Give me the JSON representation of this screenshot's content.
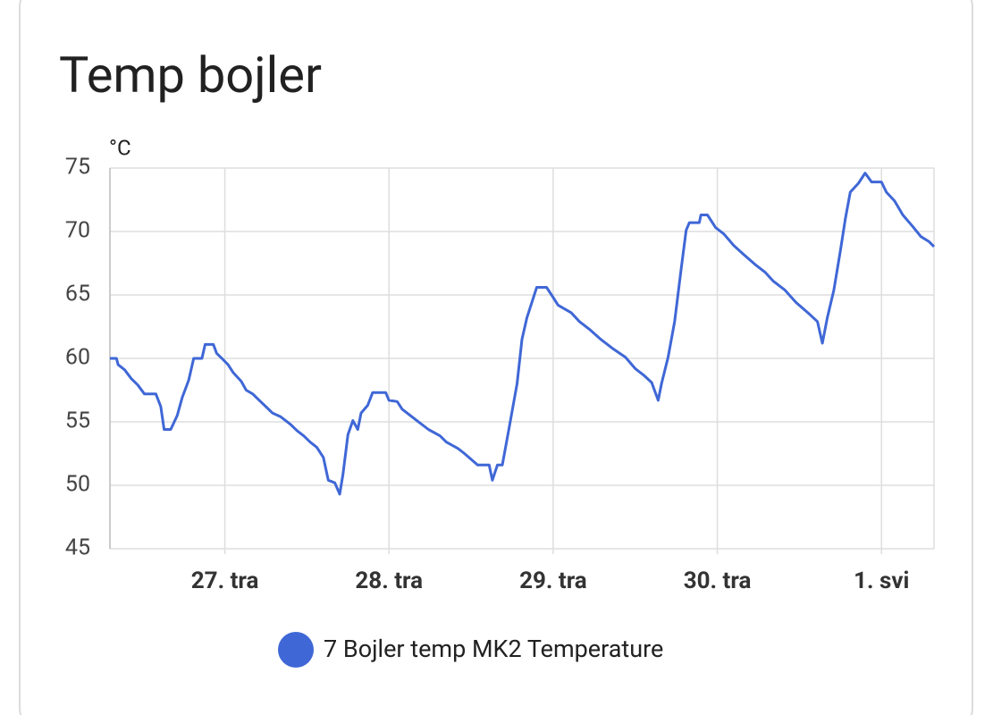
{
  "chart_data": {
    "type": "line",
    "title": "Temp bojler",
    "y_label": "°C",
    "x": [
      26.3,
      26.34,
      26.35,
      26.39,
      26.43,
      26.47,
      26.51,
      26.58,
      26.61,
      26.63,
      26.67,
      26.71,
      26.74,
      26.78,
      26.81,
      26.86,
      26.88,
      26.93,
      26.95,
      26.99,
      27.02,
      27.05,
      27.1,
      27.13,
      27.17,
      27.21,
      27.25,
      27.29,
      27.34,
      27.4,
      27.44,
      27.48,
      27.52,
      27.56,
      27.6,
      27.63,
      27.67,
      27.7,
      27.72,
      27.75,
      27.78,
      27.81,
      27.83,
      27.87,
      27.9,
      27.98,
      28.0,
      28.05,
      28.08,
      28.13,
      28.18,
      28.24,
      28.31,
      28.35,
      28.42,
      28.46,
      28.54,
      28.61,
      28.63,
      28.66,
      28.69,
      28.73,
      28.78,
      28.81,
      28.84,
      28.9,
      28.96,
      28.99,
      29.03,
      29.11,
      29.16,
      29.22,
      29.29,
      29.36,
      29.44,
      29.5,
      29.55,
      29.6,
      29.64,
      29.66,
      29.7,
      29.74,
      29.78,
      29.81,
      29.83,
      29.89,
      29.9,
      29.94,
      29.99,
      30.04,
      30.1,
      30.16,
      30.23,
      30.29,
      30.34,
      30.41,
      30.48,
      30.56,
      30.61,
      30.64,
      30.67,
      30.71,
      30.75,
      30.78,
      30.81,
      30.86,
      30.9,
      30.94,
      31.0,
      31.03,
      31.08,
      31.13,
      31.19,
      31.24,
      31.29,
      31.32
    ],
    "series": [
      {
        "name": "7 Bojler temp MK2 Temperature",
        "color": "#3f67d6",
        "values": [
          60.0,
          60.0,
          59.5,
          59.1,
          58.4,
          57.9,
          57.2,
          57.2,
          56.2,
          54.4,
          54.4,
          55.5,
          56.9,
          58.3,
          60.0,
          60.0,
          61.1,
          61.1,
          60.4,
          59.9,
          59.5,
          58.9,
          58.2,
          57.5,
          57.2,
          56.7,
          56.2,
          55.7,
          55.4,
          54.8,
          54.3,
          53.9,
          53.4,
          53.0,
          52.2,
          50.4,
          50.2,
          49.3,
          50.9,
          54.0,
          55.1,
          54.4,
          55.7,
          56.3,
          57.3,
          57.3,
          56.7,
          56.6,
          56.0,
          55.5,
          55.0,
          54.4,
          53.9,
          53.4,
          52.9,
          52.5,
          51.6,
          51.6,
          50.4,
          51.6,
          51.6,
          54.4,
          58.0,
          61.5,
          63.2,
          65.6,
          65.6,
          65.0,
          64.2,
          63.6,
          62.9,
          62.3,
          61.5,
          60.8,
          60.1,
          59.2,
          58.7,
          58.1,
          56.7,
          58.0,
          60.1,
          62.9,
          67.1,
          70.1,
          70.7,
          70.7,
          71.3,
          71.3,
          70.3,
          69.8,
          68.9,
          68.2,
          67.4,
          66.8,
          66.1,
          65.4,
          64.4,
          63.5,
          62.9,
          61.2,
          63.2,
          65.4,
          68.5,
          71.0,
          73.1,
          73.8,
          74.6,
          73.9,
          73.9,
          73.1,
          72.4,
          71.3,
          70.4,
          69.6,
          69.2,
          68.8
        ]
      }
    ],
    "xlim": [
      26.3,
      31.32
    ],
    "xticks": [
      {
        "value": 27,
        "label": "27. tra"
      },
      {
        "value": 28,
        "label": "28. tra"
      },
      {
        "value": 29,
        "label": "29. tra"
      },
      {
        "value": 30,
        "label": "30. tra"
      },
      {
        "value": 31,
        "label": "1. svi"
      }
    ],
    "ylim": [
      45,
      75
    ],
    "yticks": [
      45,
      50,
      55,
      60,
      65,
      70,
      75
    ],
    "grid": true
  }
}
